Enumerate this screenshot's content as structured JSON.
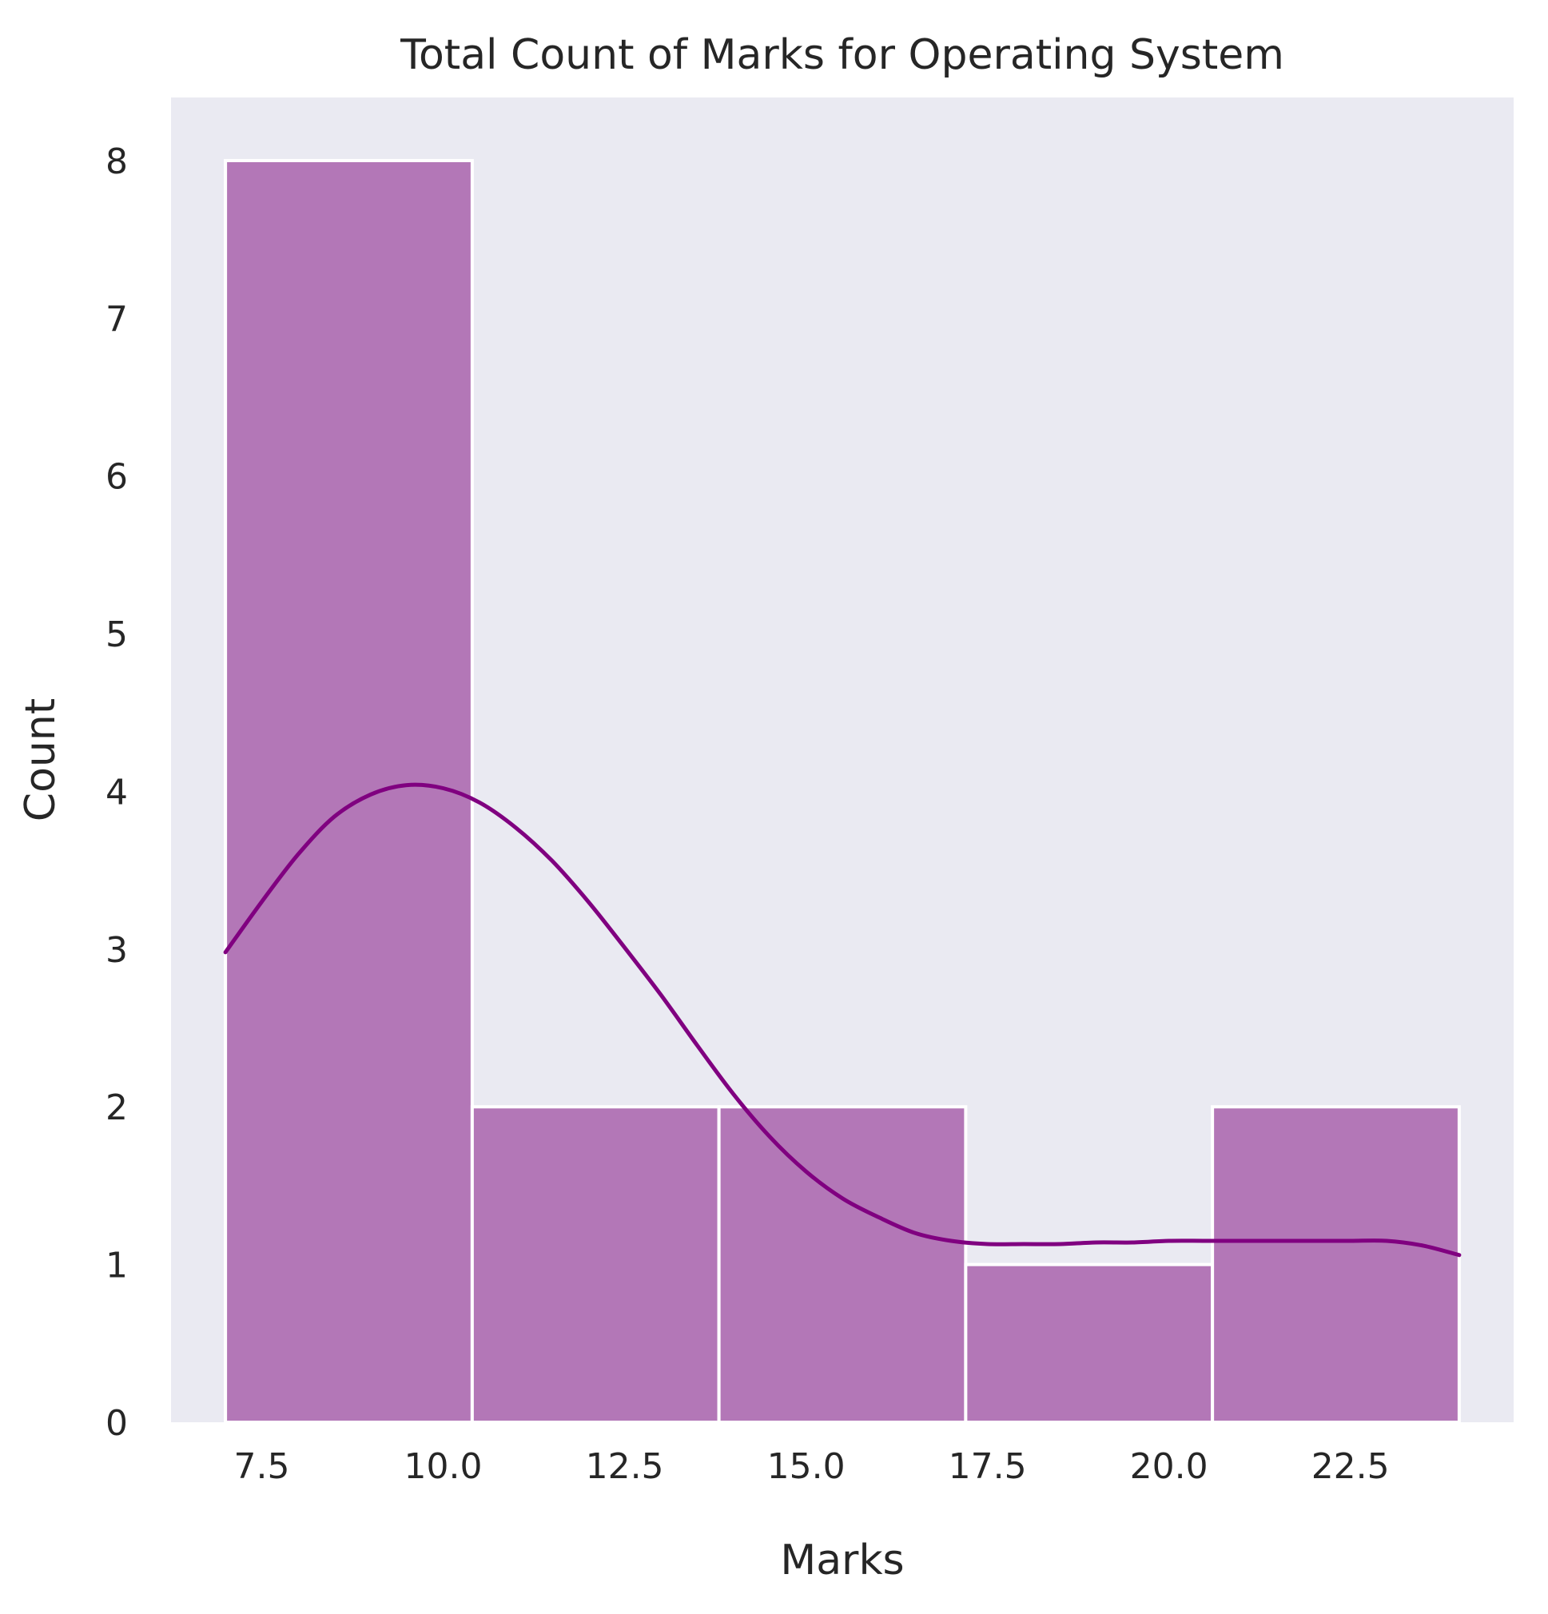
{
  "chart_data": {
    "type": "histogram",
    "title": "Total Count of Marks for Operating System",
    "xlabel": "Marks",
    "ylabel": "Count",
    "xlim": [
      6.25,
      24.75
    ],
    "ylim": [
      0,
      8.4
    ],
    "x_ticks": [
      "7.5",
      "10.0",
      "12.5",
      "15.0",
      "17.5",
      "20.0",
      "22.5"
    ],
    "y_ticks": [
      "0",
      "1",
      "2",
      "3",
      "4",
      "5",
      "6",
      "7",
      "8"
    ],
    "grid": false,
    "bins": [
      {
        "start": 7.0,
        "end": 10.4,
        "count": 8
      },
      {
        "start": 10.4,
        "end": 13.8,
        "count": 2
      },
      {
        "start": 13.8,
        "end": 17.2,
        "count": 2
      },
      {
        "start": 17.2,
        "end": 20.6,
        "count": 1
      },
      {
        "start": 20.6,
        "end": 24.0,
        "count": 2
      }
    ],
    "kde": {
      "x": [
        7.0,
        7.5,
        8.0,
        8.5,
        9.0,
        9.5,
        10.0,
        10.5,
        11.0,
        11.5,
        12.0,
        12.5,
        13.0,
        13.5,
        14.0,
        14.5,
        15.0,
        15.5,
        16.0,
        16.5,
        17.0,
        17.5,
        18.0,
        18.5,
        19.0,
        19.5,
        20.0,
        20.5,
        21.0,
        21.5,
        22.0,
        22.5,
        23.0,
        23.5,
        24.0
      ],
      "y": [
        2.98,
        3.3,
        3.6,
        3.84,
        3.98,
        4.04,
        4.02,
        3.93,
        3.77,
        3.56,
        3.3,
        3.01,
        2.71,
        2.39,
        2.08,
        1.81,
        1.59,
        1.42,
        1.3,
        1.2,
        1.15,
        1.13,
        1.13,
        1.13,
        1.14,
        1.14,
        1.15,
        1.15,
        1.15,
        1.15,
        1.15,
        1.15,
        1.15,
        1.12,
        1.06
      ]
    },
    "colors": {
      "bar_fill": "#b377b7",
      "bar_edge": "#ffffff",
      "kde_line": "#800080",
      "plot_background": "#eaeaf2"
    }
  }
}
